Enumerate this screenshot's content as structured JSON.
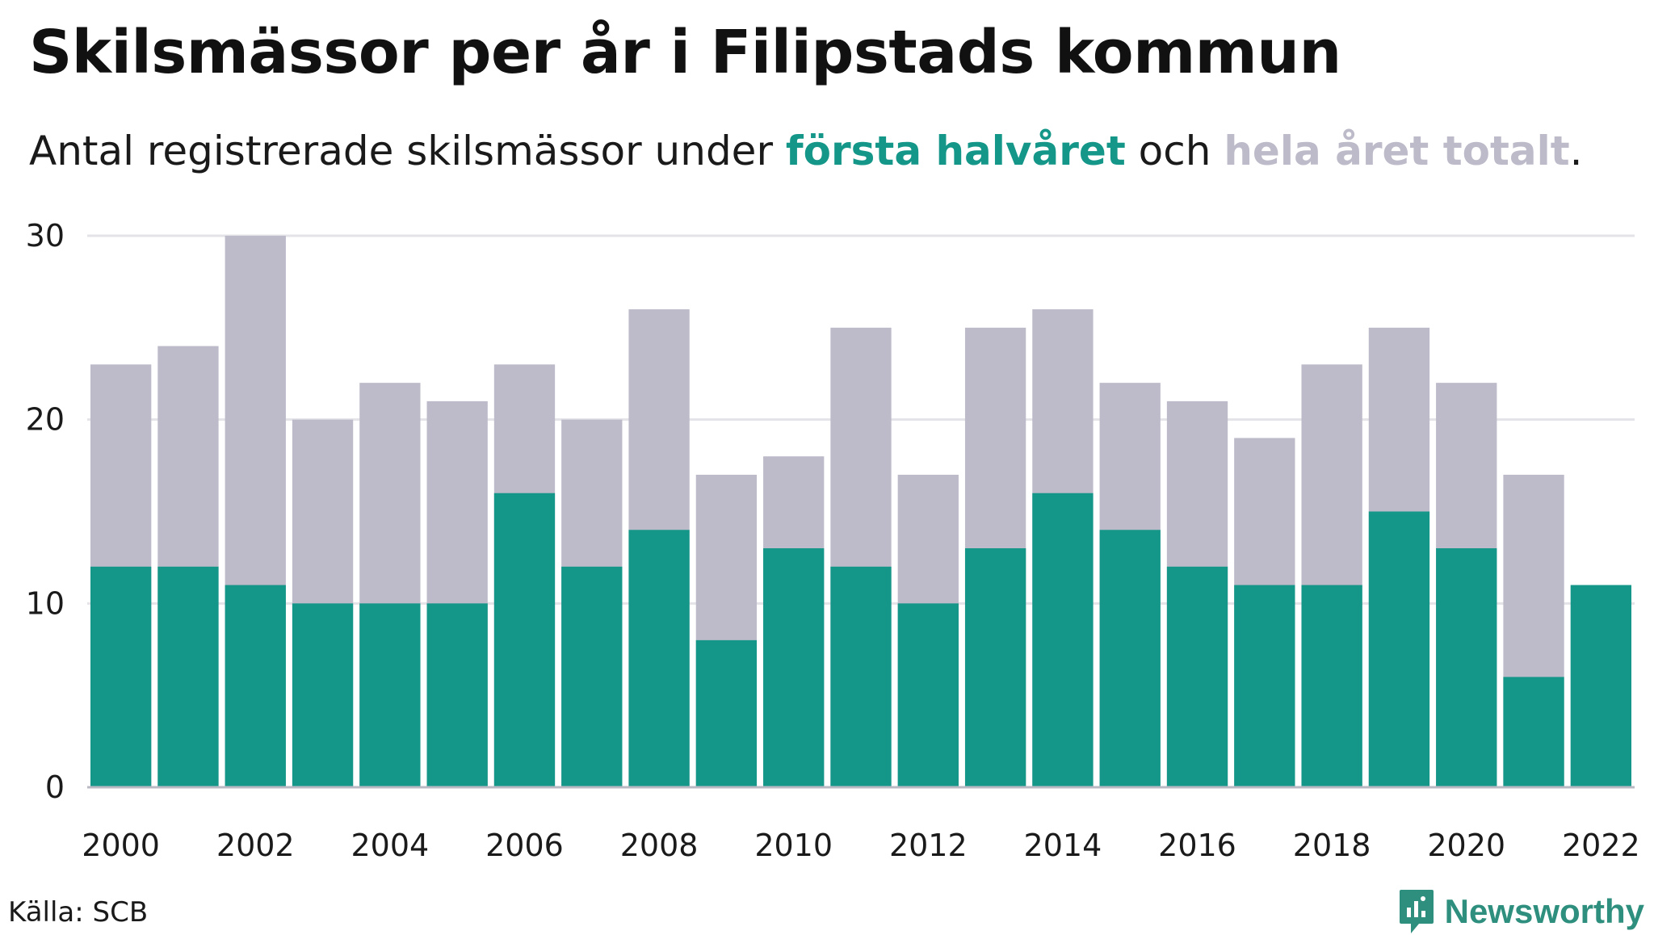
{
  "title": "Skilsmässor per år i Filipstads kommun",
  "subtitle": {
    "prefix": "Antal registrerade skilsmässor under ",
    "first_half_label": "första halvåret",
    "middle": " och ",
    "full_year_label": "hela året totalt",
    "suffix": "."
  },
  "colors": {
    "first_half": "#149688",
    "full_year": "#bdbbc9",
    "grid": "#e3e3e8",
    "axis": "#b9b9c4",
    "brand": "#2f8f7e"
  },
  "chart_data": {
    "type": "bar",
    "stacked_overlay": true,
    "categories": [
      "2000",
      "2001",
      "2002",
      "2003",
      "2004",
      "2005",
      "2006",
      "2007",
      "2008",
      "2009",
      "2010",
      "2011",
      "2012",
      "2013",
      "2014",
      "2015",
      "2016",
      "2017",
      "2018",
      "2019",
      "2020",
      "2021",
      "2022"
    ],
    "x_tick_labels": [
      "2000",
      "2002",
      "2004",
      "2006",
      "2008",
      "2010",
      "2012",
      "2014",
      "2016",
      "2018",
      "2020",
      "2022"
    ],
    "y_ticks": [
      0,
      10,
      20,
      30
    ],
    "ylim": [
      0,
      30
    ],
    "grid": true,
    "series": [
      {
        "name": "hela året totalt",
        "values": [
          23,
          24,
          30,
          20,
          22,
          21,
          23,
          20,
          26,
          17,
          18,
          25,
          17,
          25,
          26,
          22,
          21,
          19,
          23,
          25,
          22,
          17,
          null
        ]
      },
      {
        "name": "första halvåret",
        "values": [
          12,
          12,
          11,
          10,
          10,
          10,
          16,
          12,
          14,
          8,
          13,
          12,
          10,
          13,
          16,
          14,
          12,
          11,
          11,
          15,
          13,
          6,
          11
        ]
      }
    ]
  },
  "footer": {
    "source": "Källa: SCB",
    "brand": "Newsworthy",
    "brand_icon": "newsworthy-logo-icon"
  }
}
